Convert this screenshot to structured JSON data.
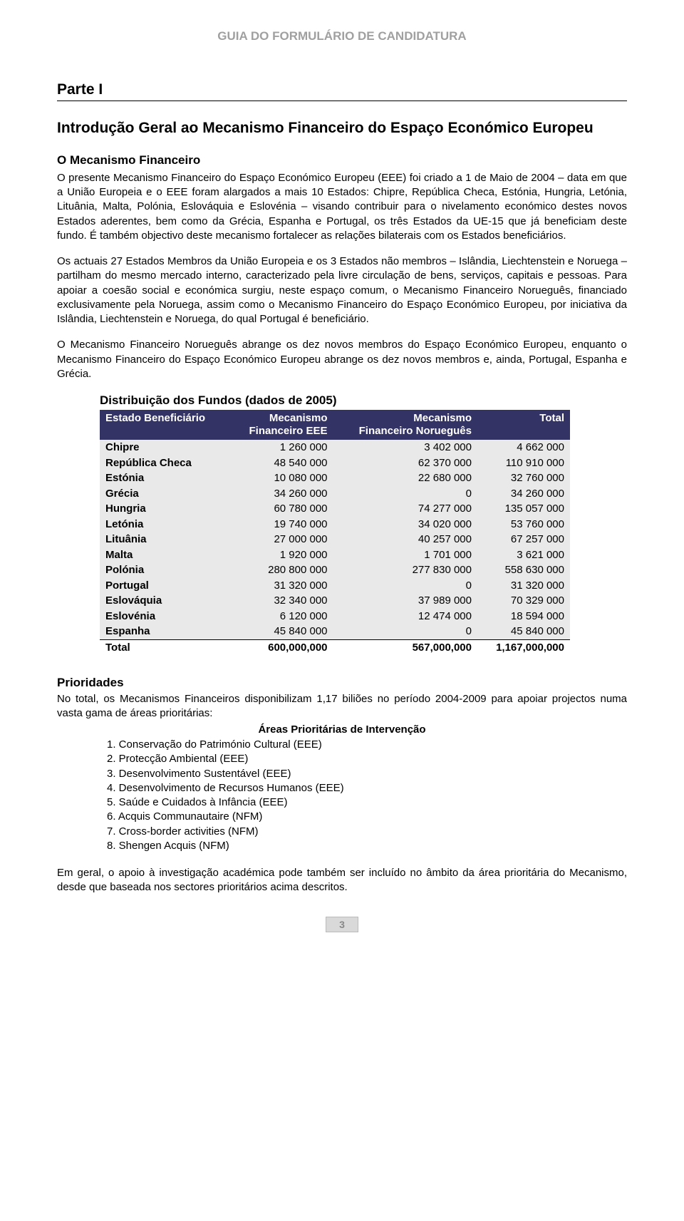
{
  "doc_header": "GUIA DO FORMULÁRIO DE CANDIDATURA",
  "part_heading": "Parte I",
  "main_title": "Introdução Geral ao Mecanismo Financeiro do Espaço Económico Europeu",
  "sub_heading": "O Mecanismo Financeiro",
  "para1": "O presente Mecanismo Financeiro do Espaço Económico Europeu (EEE) foi criado a 1 de Maio de 2004 – data em que a União Europeia e o EEE foram alargados a mais 10 Estados: Chipre, República Checa, Estónia, Hungria, Letónia, Lituânia, Malta, Polónia, Eslováquia e Eslovénia – visando contribuir para o nivelamento económico destes novos Estados aderentes, bem como da Grécia, Espanha e Portugal, os três Estados da UE-15 que já beneficiam deste fundo. É também objectivo deste mecanismo fortalecer as relações bilaterais com os Estados beneficiários.",
  "para2": "Os actuais 27 Estados Membros da União Europeia e os 3 Estados não membros – Islândia, Liechtenstein e Noruega – partilham do mesmo mercado interno, caracterizado pela livre circulação de bens, serviços, capitais e pessoas. Para apoiar a coesão social e económica surgiu, neste espaço comum, o Mecanismo Financeiro Norueguês, financiado exclusivamente pela Noruega, assim como o Mecanismo Financeiro do Espaço Económico Europeu, por iniciativa da Islândia, Liechtenstein e Noruega, do qual Portugal é beneficiário.",
  "para3": "O Mecanismo Financeiro Norueguês abrange os dez novos membros do Espaço Económico Europeu, enquanto o Mecanismo Financeiro do Espaço Económico Europeu abrange os dez novos membros e, ainda, Portugal, Espanha e Grécia.",
  "table": {
    "title": "Distribuição dos Fundos (dados de 2005)",
    "header_bg": "#333366",
    "header_fg": "#ffffff",
    "row_bg": "#e9e9e9",
    "columns": [
      "Estado Beneficiário",
      "Mecanismo Financeiro EEE",
      "Mecanismo Financeiro Norueguês",
      "Total"
    ],
    "rows": [
      {
        "state": "Chipre",
        "eee": "1 260 000",
        "nor": "3 402 000",
        "total": "4 662 000"
      },
      {
        "state": "República Checa",
        "eee": "48 540 000",
        "nor": "62 370 000",
        "total": "110 910 000"
      },
      {
        "state": "Estónia",
        "eee": "10 080 000",
        "nor": "22 680 000",
        "total": "32 760 000"
      },
      {
        "state": "Grécia",
        "eee": "34 260 000",
        "nor": "0",
        "total": "34 260 000"
      },
      {
        "state": "Hungria",
        "eee": "60 780 000",
        "nor": "74 277 000",
        "total": "135 057 000"
      },
      {
        "state": "Letónia",
        "eee": "19 740 000",
        "nor": "34 020 000",
        "total": "53 760 000"
      },
      {
        "state": "Lituânia",
        "eee": "27 000 000",
        "nor": "40 257 000",
        "total": "67 257 000"
      },
      {
        "state": "Malta",
        "eee": "1 920 000",
        "nor": "1 701 000",
        "total": "3 621 000"
      },
      {
        "state": "Polónia",
        "eee": "280 800 000",
        "nor": "277 830 000",
        "total": "558 630 000"
      },
      {
        "state": "Portugal",
        "eee": "31 320 000",
        "nor": "0",
        "total": "31 320 000"
      },
      {
        "state": "Eslováquia",
        "eee": "32 340 000",
        "nor": "37 989 000",
        "total": "70 329 000"
      },
      {
        "state": "Eslovénia",
        "eee": "6 120 000",
        "nor": "12 474 000",
        "total": "18 594 000"
      },
      {
        "state": "Espanha",
        "eee": "45 840 000",
        "nor": "0",
        "total": "45 840 000"
      }
    ],
    "total_row": {
      "state": "Total",
      "eee": "600,000,000",
      "nor": "567,000,000",
      "total": "1,167,000,000"
    }
  },
  "priorities_heading": "Prioridades",
  "priorities_intro": "No total, os Mecanismos Financeiros disponibilizam 1,17 biliões no período 2004-2009 para apoiar projectos numa vasta gama de áreas prioritárias:",
  "areas_title": "Áreas Prioritárias de Intervenção",
  "areas": [
    "1. Conservação do Património Cultural (EEE)",
    "2. Protecção Ambiental (EEE)",
    "3. Desenvolvimento Sustentável (EEE)",
    "4. Desenvolvimento de Recursos Humanos (EEE)",
    "5. Saúde e Cuidados à Infância (EEE)",
    "6. Acquis Communautaire (NFM)",
    "7. Cross-border activities (NFM)",
    "8. Shengen Acquis (NFM)"
  ],
  "closing": "Em geral, o apoio à investigação académica pode também ser incluído no âmbito da área prioritária do Mecanismo, desde que baseada nos sectores prioritários acima descritos.",
  "page_number": "3"
}
